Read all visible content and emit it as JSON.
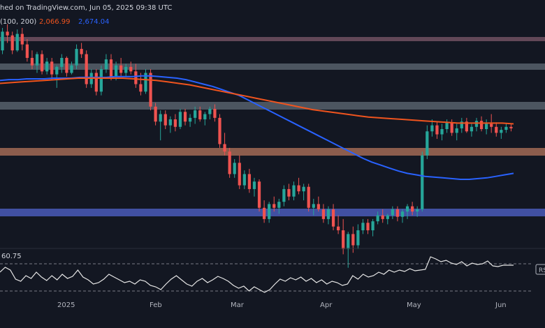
{
  "header": {
    "publish_text": "hed on TradingView.com, Jun 05, 2025 09:38 UTC",
    "ma_params": "(100, 200)",
    "ma_value_orange": "2,066.99",
    "ma_value_blue": "2,674.04"
  },
  "rsi_panel": {
    "top_value": "60.75",
    "tag": "RS"
  },
  "xaxis": {
    "ticks": [
      "2025",
      "Feb",
      "Mar",
      "Apr",
      "May",
      "Jun"
    ]
  },
  "colors": {
    "background": "#131722",
    "up": "#26a69a",
    "down": "#ef5350",
    "ma_blue": "#2962ff",
    "ma_orange": "#f0541e",
    "rsi_line": "#e6e6e6",
    "resistance_zone": "#b2b5be",
    "support_zone_orange": "#d47a55",
    "support_zone_blue": "#4a5ab8"
  },
  "chart_data": {
    "type": "candlestick",
    "series": [
      {
        "name": "price",
        "ohlc": [
          [
            470,
            500,
            465,
            495
          ],
          [
            495,
            505,
            480,
            490
          ],
          [
            490,
            495,
            465,
            470
          ],
          [
            470,
            498,
            468,
            492
          ],
          [
            492,
            500,
            470,
            478
          ],
          [
            478,
            485,
            455,
            460
          ],
          [
            460,
            470,
            445,
            450
          ],
          [
            450,
            468,
            440,
            465
          ],
          [
            465,
            470,
            438,
            442
          ],
          [
            442,
            460,
            438,
            455
          ],
          [
            455,
            460,
            430,
            438
          ],
          [
            438,
            450,
            420,
            448
          ],
          [
            448,
            465,
            440,
            460
          ],
          [
            460,
            462,
            435,
            440
          ],
          [
            440,
            455,
            438,
            450
          ],
          [
            450,
            478,
            445,
            472
          ],
          [
            472,
            480,
            460,
            465
          ],
          [
            465,
            470,
            420,
            425
          ],
          [
            425,
            445,
            420,
            440
          ],
          [
            440,
            445,
            410,
            415
          ],
          [
            415,
            450,
            410,
            445
          ],
          [
            445,
            465,
            440,
            458
          ],
          [
            458,
            465,
            430,
            435
          ],
          [
            435,
            455,
            430,
            450
          ],
          [
            450,
            460,
            435,
            440
          ],
          [
            440,
            452,
            435,
            448
          ],
          [
            448,
            455,
            438,
            442
          ],
          [
            442,
            452,
            420,
            425
          ],
          [
            425,
            440,
            410,
            415
          ],
          [
            415,
            445,
            412,
            440
          ],
          [
            440,
            445,
            390,
            395
          ],
          [
            395,
            400,
            370,
            375
          ],
          [
            375,
            390,
            350,
            385
          ],
          [
            385,
            390,
            365,
            370
          ],
          [
            370,
            382,
            360,
            378
          ],
          [
            378,
            385,
            362,
            368
          ],
          [
            368,
            392,
            365,
            388
          ],
          [
            388,
            392,
            370,
            375
          ],
          [
            375,
            385,
            368,
            380
          ],
          [
            380,
            395,
            372,
            390
          ],
          [
            390,
            395,
            375,
            378
          ],
          [
            378,
            388,
            370,
            385
          ],
          [
            385,
            395,
            378,
            392
          ],
          [
            392,
            398,
            375,
            380
          ],
          [
            380,
            385,
            340,
            345
          ],
          [
            345,
            360,
            330,
            335
          ],
          [
            335,
            340,
            300,
            305
          ],
          [
            305,
            325,
            300,
            320
          ],
          [
            320,
            330,
            285,
            290
          ],
          [
            290,
            310,
            285,
            305
          ],
          [
            305,
            312,
            280,
            285
          ],
          [
            285,
            300,
            275,
            295
          ],
          [
            295,
            298,
            255,
            260
          ],
          [
            260,
            270,
            240,
            245
          ],
          [
            245,
            268,
            240,
            265
          ],
          [
            265,
            275,
            255,
            260
          ],
          [
            260,
            272,
            252,
            268
          ],
          [
            268,
            290,
            262,
            285
          ],
          [
            285,
            292,
            270,
            275
          ],
          [
            275,
            295,
            270,
            290
          ],
          [
            290,
            300,
            278,
            282
          ],
          [
            282,
            292,
            270,
            288
          ],
          [
            288,
            292,
            255,
            260
          ],
          [
            260,
            272,
            250,
            265
          ],
          [
            265,
            275,
            255,
            258
          ],
          [
            258,
            265,
            240,
            245
          ],
          [
            245,
            262,
            238,
            258
          ],
          [
            258,
            265,
            230,
            235
          ],
          [
            235,
            250,
            225,
            230
          ],
          [
            230,
            245,
            198,
            205
          ],
          [
            205,
            228,
            180,
            225
          ],
          [
            225,
            235,
            200,
            210
          ],
          [
            210,
            238,
            205,
            230
          ],
          [
            230,
            245,
            225,
            240
          ],
          [
            240,
            245,
            225,
            230
          ],
          [
            230,
            245,
            222,
            242
          ],
          [
            242,
            255,
            238,
            250
          ],
          [
            250,
            258,
            240,
            245
          ],
          [
            245,
            252,
            238,
            250
          ],
          [
            250,
            262,
            245,
            258
          ],
          [
            258,
            262,
            242,
            248
          ],
          [
            248,
            258,
            240,
            255
          ],
          [
            255,
            265,
            245,
            262
          ],
          [
            262,
            268,
            250,
            255
          ],
          [
            255,
            262,
            248,
            258
          ],
          [
            258,
            335,
            255,
            330
          ],
          [
            330,
            370,
            325,
            362
          ],
          [
            362,
            378,
            355,
            370
          ],
          [
            370,
            375,
            352,
            358
          ],
          [
            358,
            372,
            350,
            365
          ],
          [
            365,
            378,
            360,
            374
          ],
          [
            374,
            378,
            356,
            360
          ],
          [
            360,
            372,
            350,
            366
          ],
          [
            366,
            380,
            360,
            375
          ],
          [
            375,
            380,
            360,
            362
          ],
          [
            362,
            372,
            355,
            368
          ],
          [
            368,
            380,
            362,
            376
          ],
          [
            376,
            382,
            362,
            365
          ],
          [
            365,
            378,
            358,
            372
          ],
          [
            372,
            385,
            360,
            368
          ],
          [
            368,
            374,
            355,
            360
          ],
          [
            360,
            368,
            352,
            364
          ],
          [
            364,
            372,
            360,
            368
          ],
          [
            368,
            372,
            362,
            366
          ]
        ]
      },
      {
        "name": "MA 100",
        "values": [
          430,
          431,
          431,
          432,
          432,
          432,
          433,
          433,
          433,
          434,
          434,
          434,
          434,
          435,
          435,
          435,
          436,
          436,
          435,
          434,
          433,
          431,
          428,
          425,
          422,
          418,
          414,
          410,
          404,
          398,
          392,
          386,
          380,
          374,
          368,
          362,
          356,
          350,
          344,
          338,
          332,
          326,
          321,
          317,
          313,
          309,
          306,
          304,
          302,
          301,
          300,
          299,
          298,
          298,
          299,
          300,
          302,
          304,
          306
        ]
      },
      {
        "name": "MA 200",
        "values": [
          426,
          427,
          428,
          429,
          430,
          431,
          432,
          433,
          433,
          433,
          433,
          433,
          432,
          431,
          430,
          428,
          426,
          424,
          421,
          418,
          415,
          412,
          409,
          406,
          403,
          400,
          397,
          394,
          391,
          389,
          387,
          385,
          383,
          381,
          380,
          379,
          378,
          377,
          376,
          375,
          374,
          373,
          373,
          373,
          373,
          373,
          372
        ]
      }
    ],
    "rsi": {
      "values": [
        55,
        62,
        58,
        45,
        42,
        50,
        46,
        55,
        48,
        43,
        50,
        44,
        52,
        46,
        49,
        58,
        48,
        44,
        38,
        40,
        45,
        52,
        48,
        44,
        40,
        42,
        38,
        44,
        42,
        36,
        34,
        30,
        38,
        45,
        50,
        44,
        38,
        35,
        42,
        46,
        40,
        44,
        49,
        46,
        42,
        36,
        32,
        35,
        28,
        34,
        30,
        26,
        30,
        38,
        45,
        42,
        47,
        44,
        48,
        42,
        46,
        40,
        44,
        38,
        42,
        40,
        36,
        38,
        50,
        45,
        52,
        48,
        50,
        55,
        52,
        58,
        55,
        58,
        56,
        60,
        57,
        58,
        59,
        77,
        74,
        70,
        72,
        68,
        66,
        70,
        64,
        68,
        66,
        67,
        71,
        64,
        63,
        65,
        65,
        65
      ]
    },
    "horizontal_zones": [
      {
        "kind": "resistance"
      },
      {
        "kind": "resistance"
      },
      {
        "kind": "resistance"
      },
      {
        "kind": "support"
      },
      {
        "kind": "support"
      }
    ]
  }
}
